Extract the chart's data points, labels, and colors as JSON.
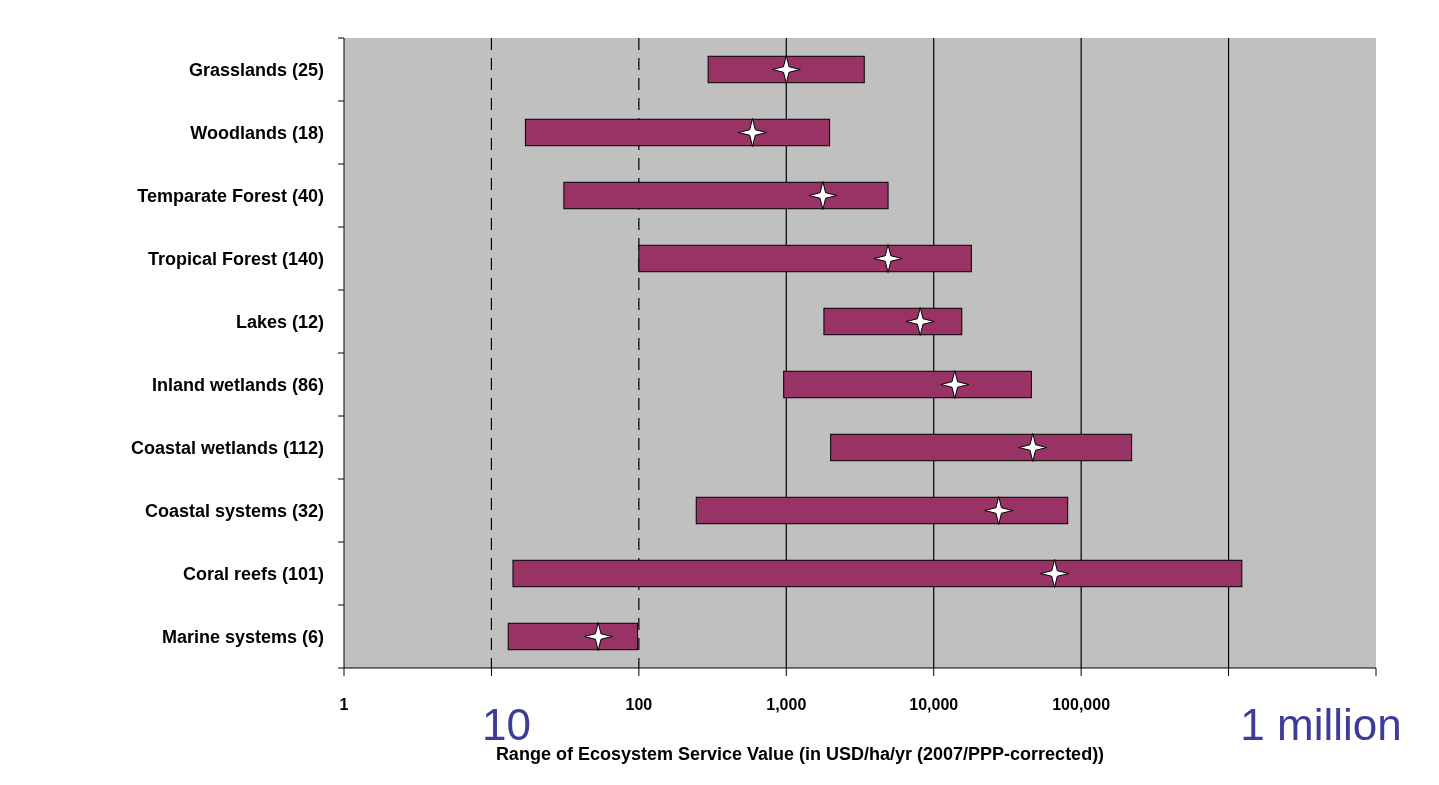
{
  "chart_data": {
    "type": "bar",
    "orientation": "horizontal",
    "log": "x",
    "xlabel": "Range of Ecosystem Service Value (in USD/ha/yr (2007/PPP-corrected))",
    "categories": [
      "Grasslands (25)",
      "Woodlands (18)",
      "Temparate Forest (40)",
      "Tropical Forest (140)",
      "Lakes (12)",
      "Inland wetlands (86)",
      "Coastal wetlands (112)",
      "Coastal systems (32)",
      "Coral reefs (101)",
      "Marine systems (6)"
    ],
    "series": [
      {
        "base": [
          295,
          17,
          31,
          100,
          1800,
          960,
          2000,
          245,
          14,
          13
        ],
        "color": "#993366",
        "values": [
          3085,
          1950,
          4870,
          17900,
          13700,
          45000,
          218000,
          80800,
          1230000,
          85
        ]
      },
      {
        "type": "scatter",
        "marker": "star",
        "color": "#ffffff",
        "x": [
          "Grasslands (25)",
          "Woodlands (18)",
          "Temparate Forest (40)",
          "Tropical Forest (140)",
          "Lakes (12)",
          "Inland wetlands (86)",
          "Coastal wetlands (112)",
          "Coastal systems (32)",
          "Coral reefs (101)",
          "Marine systems (6)"
        ],
        "values": [
          1000,
          590,
          1770,
          4900,
          8100,
          13900,
          47000,
          27600,
          66000,
          53
        ]
      }
    ],
    "xlim": [
      1,
      10000000
    ],
    "xticks": [
      1,
      {
        "value": 10,
        "label": null
      },
      100,
      {
        "value": 1000,
        "label": "1,000"
      },
      {
        "value": 10000,
        "label": "10,000"
      },
      {
        "value": 100000,
        "label": "100,000"
      },
      {
        "value": 1000000,
        "label": null
      },
      {
        "value": 10000000,
        "label": null
      }
    ],
    "grid": false,
    "ref_lines": [
      {
        "axis": "x",
        "value": 10,
        "line_style": "dashed",
        "color": "#000000"
      },
      {
        "axis": "x",
        "value": 100,
        "line_style": "dashed",
        "color": "#000000"
      },
      {
        "axis": "x",
        "value": 1000,
        "line_style": "solid",
        "color": "#000000"
      },
      {
        "axis": "x",
        "value": 10000,
        "line_style": "solid",
        "color": "#000000"
      },
      {
        "axis": "x",
        "value": 100000,
        "line_style": "solid",
        "color": "#000000"
      },
      {
        "axis": "x",
        "value": 1000000,
        "line_style": "solid",
        "color": "#000000"
      }
    ],
    "annotations": [
      "10",
      "1 million"
    ]
  }
}
